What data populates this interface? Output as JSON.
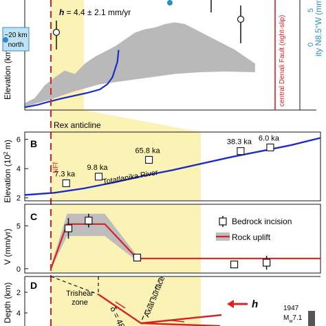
{
  "chart_data": [
    {
      "panel": "A",
      "type": "area",
      "ylabel": "Elevation (km)",
      "right_ylabel": "ity N8.5°W (mm/yr)",
      "right_ticks": [
        0,
        5
      ],
      "annotations": {
        "rate": "h = 4.4 ± 2.1 mm/yr",
        "box": [
          "~20 km",
          "north"
        ],
        "fault": "central Denali Fault (right-slip)"
      },
      "band_upper": [
        [
          0,
          0.2
        ],
        [
          0.04,
          0.35
        ],
        [
          0.08,
          0.72
        ],
        [
          0.12,
          0.95
        ],
        [
          0.16,
          1.15
        ],
        [
          0.2,
          1.05
        ],
        [
          0.24,
          1.35
        ],
        [
          0.28,
          1.55
        ],
        [
          0.32,
          1.7
        ],
        [
          0.36,
          1.85
        ],
        [
          0.4,
          2.05
        ],
        [
          0.44,
          2.25
        ],
        [
          0.48,
          2.35
        ],
        [
          0.52,
          2.4
        ],
        [
          0.56,
          2.5
        ],
        [
          0.6,
          2.55
        ],
        [
          0.64,
          2.5
        ],
        [
          0.68,
          2.35
        ],
        [
          0.72,
          2.2
        ],
        [
          0.76,
          2.05
        ],
        [
          0.8,
          1.9
        ],
        [
          0.84,
          1.75
        ],
        [
          0.88,
          1.55
        ],
        [
          0.92,
          1.35
        ]
      ],
      "band_lower": [
        [
          0,
          0.1
        ],
        [
          0.1,
          0.3
        ],
        [
          0.2,
          0.55
        ],
        [
          0.3,
          0.75
        ],
        [
          0.4,
          0.85
        ],
        [
          0.5,
          0.95
        ],
        [
          0.6,
          1.05
        ],
        [
          0.7,
          1.1
        ],
        [
          0.8,
          1.12
        ],
        [
          0.92,
          1.1
        ]
      ],
      "profile": [
        [
          0,
          0.08
        ],
        [
          0.05,
          0.15
        ],
        [
          0.1,
          0.25
        ],
        [
          0.15,
          0.34
        ],
        [
          0.2,
          0.42
        ],
        [
          0.25,
          0.5
        ],
        [
          0.3,
          0.6
        ],
        [
          0.33,
          0.75
        ],
        [
          0.35,
          0.95
        ],
        [
          0.37,
          1.4
        ],
        [
          0.375,
          1.75
        ]
      ]
    },
    {
      "panel": "B",
      "type": "line",
      "ylabel": "Elevation (10² m)",
      "yticks": [
        2,
        4,
        6
      ],
      "ylim": [
        1.8,
        6.5
      ],
      "feature": "Rex anticline",
      "fault_label": "NFf",
      "river": "Totatlanika River",
      "profile": [
        [
          0,
          2.2
        ],
        [
          0.1,
          2.35
        ],
        [
          0.2,
          2.65
        ],
        [
          0.3,
          3.05
        ],
        [
          0.4,
          3.5
        ],
        [
          0.5,
          3.9
        ],
        [
          0.6,
          4.35
        ],
        [
          0.7,
          4.8
        ],
        [
          0.8,
          5.2
        ],
        [
          0.9,
          5.6
        ],
        [
          1.0,
          6.1
        ]
      ],
      "ages": [
        {
          "x": 0.14,
          "y": 3.0,
          "label": "7.3 ka"
        },
        {
          "x": 0.25,
          "y": 3.45,
          "label": "9.8 ka"
        },
        {
          "x": 0.42,
          "y": 4.6,
          "label": "65.8 ka"
        },
        {
          "x": 0.73,
          "y": 5.2,
          "label": "38.3 ka"
        },
        {
          "x": 0.83,
          "y": 5.45,
          "label": "6.0 ka"
        }
      ]
    },
    {
      "panel": "C",
      "type": "line",
      "ylabel": "V (mm/yr)",
      "yticks": [
        0,
        5
      ],
      "ylim": [
        -0.5,
        7.5
      ],
      "legend": [
        "Bedrock incision",
        "Rock uplift"
      ],
      "legend_position": "right",
      "uplift": [
        [
          0,
          0
        ],
        [
          0.06,
          5.2
        ],
        [
          0.2,
          5.2
        ],
        [
          0.32,
          1.2
        ],
        [
          1.0,
          1.2
        ]
      ],
      "band_upper": [
        [
          0,
          0.3
        ],
        [
          0.06,
          6.4
        ],
        [
          0.2,
          6.4
        ],
        [
          0.32,
          1.5
        ]
      ],
      "band_lower": [
        [
          0,
          0
        ],
        [
          0.06,
          3.8
        ],
        [
          0.2,
          3.8
        ],
        [
          0.32,
          0.9
        ]
      ],
      "incision": [
        {
          "x": 0.065,
          "y": 4.7,
          "err": 1.2
        },
        {
          "x": 0.14,
          "y": 5.6,
          "err": 0.8
        },
        {
          "x": 0.32,
          "y": 1.3,
          "err": 0.3
        },
        {
          "x": 0.68,
          "y": 0.5,
          "err": 0.3
        },
        {
          "x": 0.8,
          "y": 0.7,
          "err": 0.8
        }
      ]
    },
    {
      "panel": "D",
      "type": "diagram",
      "ylabel": "Depth (km)",
      "yticks": [
        2,
        4
      ],
      "labels": {
        "trishear": [
          "Trishear",
          "zone"
        ],
        "axial": "Axial surface",
        "delta": "δ = 48°",
        "h": "h",
        "eq_year": "1947",
        "eq_mag": "Mw7.1"
      }
    }
  ]
}
